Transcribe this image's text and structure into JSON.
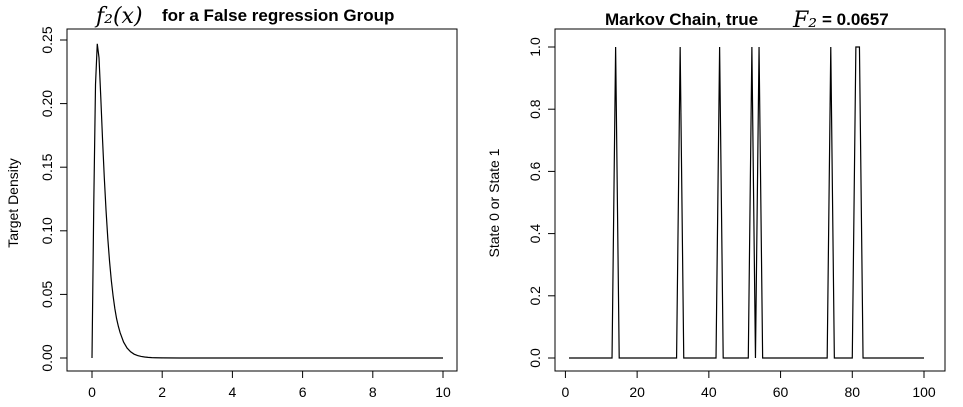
{
  "chart_data": [
    {
      "type": "line",
      "title": {
        "math": "f₂(x)",
        "text": "for a False regression Group"
      },
      "xlabel": "",
      "ylabel": "Target Density",
      "xlim": [
        0,
        10
      ],
      "ylim": [
        0,
        0.25
      ],
      "xticks": [
        "0",
        "2",
        "4",
        "6",
        "8",
        "10"
      ],
      "yticks": [
        "0.00",
        "0.05",
        "0.10",
        "0.15",
        "0.20",
        "0.25"
      ],
      "grid": false,
      "series": [
        {
          "x": [
            0,
            0.05,
            0.1,
            0.15,
            0.2,
            0.25,
            0.3,
            0.35,
            0.4,
            0.45,
            0.5,
            0.55,
            0.6,
            0.65,
            0.7,
            0.75,
            0.8,
            0.9,
            1.0,
            1.1,
            1.2,
            1.3,
            1.4,
            1.5,
            1.6,
            1.7,
            1.8,
            2.0,
            2.5,
            3,
            4,
            5,
            6,
            7,
            8,
            9,
            10
          ],
          "y": [
            0,
            0.12,
            0.215,
            0.247,
            0.236,
            0.205,
            0.172,
            0.142,
            0.116,
            0.094,
            0.076,
            0.061,
            0.049,
            0.039,
            0.031,
            0.025,
            0.02,
            0.0125,
            0.0078,
            0.0049,
            0.003,
            0.0019,
            0.0012,
            0.0008,
            0.0005,
            0.0003,
            0.0002,
            0.0001,
            2e-05,
            0,
            0,
            0,
            0,
            0,
            0,
            0,
            0
          ]
        }
      ]
    },
    {
      "type": "line",
      "title": {
        "text": "Markov Chain, true",
        "math": "F₂",
        "value": "= 0.0657"
      },
      "xlabel": "",
      "ylabel": "State 0 or State 1",
      "xlim": [
        1,
        100
      ],
      "ylim": [
        0,
        1
      ],
      "xticks": [
        "0",
        "20",
        "40",
        "60",
        "80",
        "100"
      ],
      "yticks": [
        "0.0",
        "0.2",
        "0.4",
        "0.6",
        "0.8",
        "1.0"
      ],
      "grid": false,
      "series": [
        {
          "ones_at": [
            14,
            32,
            43,
            52,
            54,
            74,
            81,
            82
          ],
          "x_start": 1,
          "x_end": 100
        }
      ]
    }
  ]
}
